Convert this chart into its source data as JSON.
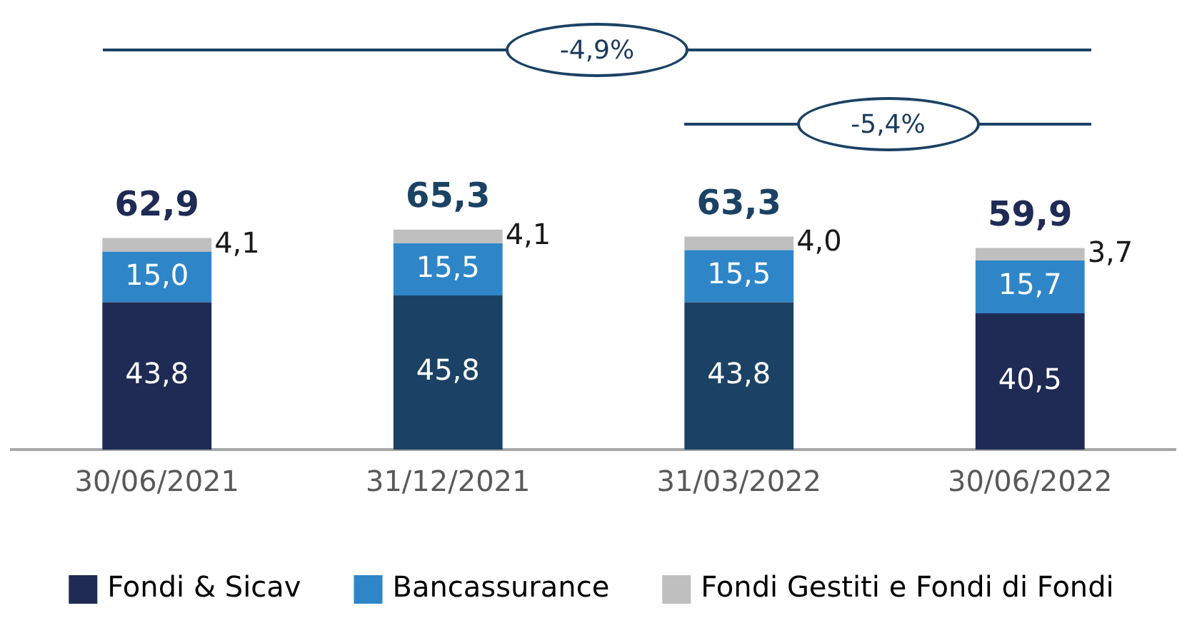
{
  "chart_data": {
    "type": "bar",
    "stacked": true,
    "categories": [
      "30/06/2021",
      "31/12/2021",
      "31/03/2022",
      "30/06/2022"
    ],
    "series": [
      {
        "name": "Fondi & Sicav",
        "colors": [
          "#1f2a55",
          "#1b4264",
          "#1b4264",
          "#1f2a55"
        ],
        "color": "#1f2a55",
        "values": [
          43.8,
          45.8,
          43.8,
          40.5
        ],
        "value_labels": [
          "43,8",
          "45,8",
          "43,8",
          "40,5"
        ]
      },
      {
        "name": "Bancassurance",
        "color": "#2e86c8",
        "values": [
          15.0,
          15.5,
          15.5,
          15.7
        ],
        "value_labels": [
          "15,0",
          "15,5",
          "15,5",
          "15,7"
        ]
      },
      {
        "name": "Fondi Gestiti e Fondi di Fondi",
        "color": "#bfbfbf",
        "values": [
          4.1,
          4.1,
          4.0,
          3.7
        ],
        "value_labels": [
          "4,1",
          "4,1",
          "4,0",
          "3,7"
        ]
      }
    ],
    "totals": [
      "62,9",
      "65,3",
      "63,3",
      "59,9"
    ],
    "annotations": [
      "-4,9%",
      "-5,4%"
    ],
    "legend": "bottom",
    "grid": false
  }
}
